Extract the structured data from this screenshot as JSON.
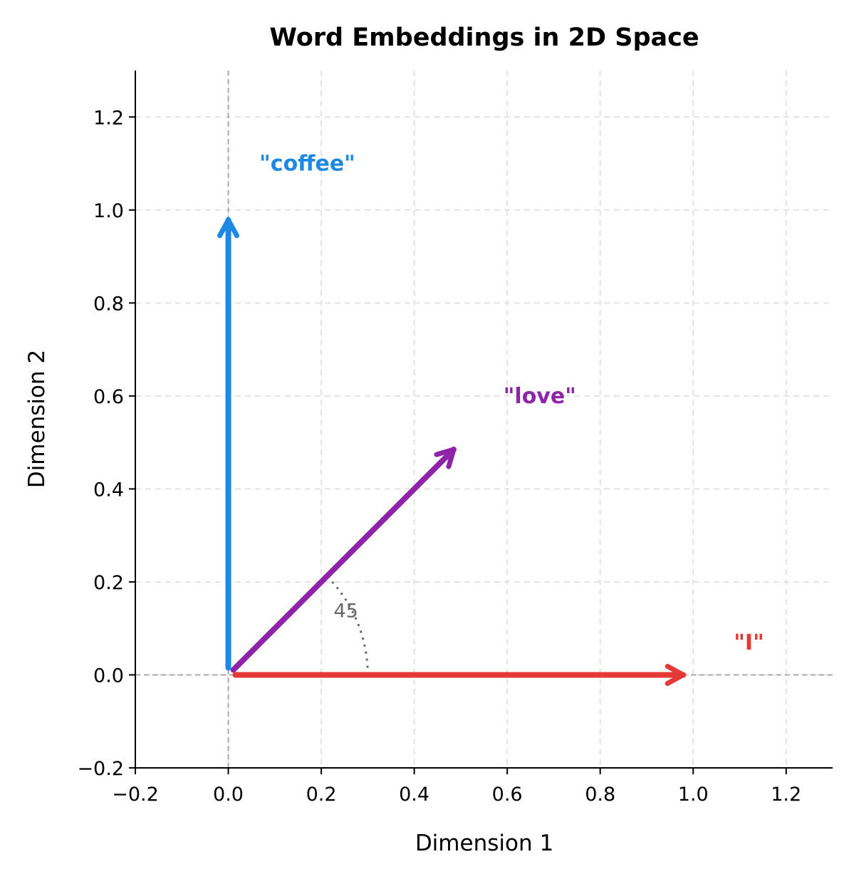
{
  "chart_data": {
    "type": "vector",
    "title": "Word Embeddings in 2D Space",
    "xlabel": "Dimension 1",
    "ylabel": "Dimension 2",
    "xlim": [
      -0.2,
      1.3
    ],
    "ylim": [
      -0.2,
      1.3
    ],
    "xticks": [
      "−0.2",
      "0.0",
      "0.2",
      "0.4",
      "0.6",
      "0.8",
      "1.0",
      "1.2"
    ],
    "yticks": [
      "−0.2",
      "0.0",
      "0.2",
      "0.4",
      "0.6",
      "0.8",
      "1.0",
      "1.2"
    ],
    "tick_values": [
      -0.2,
      0,
      0.2,
      0.4,
      0.6,
      0.8,
      1.0,
      1.2
    ],
    "grid": true,
    "vectors": [
      {
        "label": "\"I\"",
        "x": 1.0,
        "y": 0.0,
        "color": "#e53935",
        "label_pos": [
          1.12,
          0.07
        ]
      },
      {
        "label": "\"love\"",
        "x": 0.5,
        "y": 0.5,
        "color": "#8e24aa",
        "label_pos": [
          0.67,
          0.6
        ]
      },
      {
        "label": "\"coffee\"",
        "x": 0.0,
        "y": 1.0,
        "color": "#1e88e5",
        "label_pos": [
          0.17,
          1.1
        ]
      }
    ],
    "angle_annotation": {
      "text": "45",
      "degrees": 45,
      "radius": 0.3,
      "color": "#666666"
    }
  }
}
